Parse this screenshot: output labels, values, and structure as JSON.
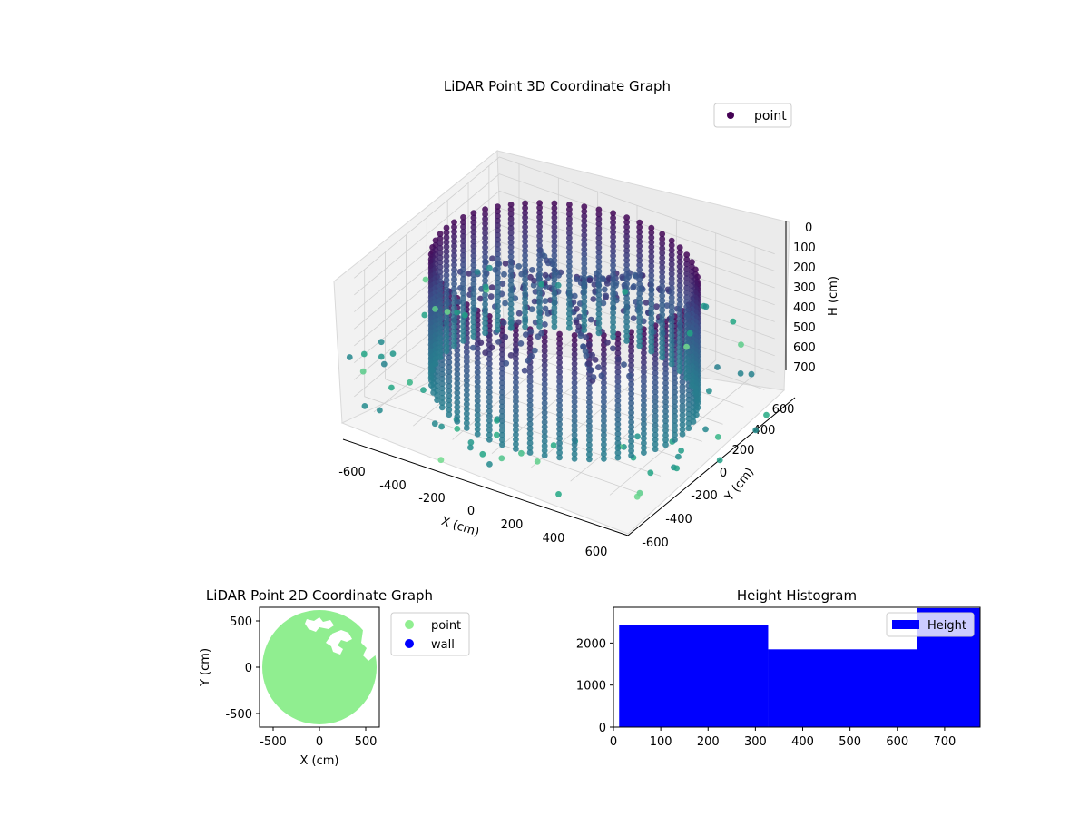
{
  "colors": {
    "viridis_dark": "#440154",
    "viridis_mid": "#2a788e",
    "viridis_teal": "#22a884",
    "point_2d": "#90ee90",
    "wall_2d": "#0000ff",
    "hist_bar": "#0000ff",
    "pane": "#f2f2f2",
    "grid": "#d0d0d0"
  },
  "chart_data": [
    {
      "type": "scatter",
      "projection": "3d",
      "title": "LiDAR Point 3D Coordinate Graph",
      "xlabel": "X (cm)",
      "ylabel": "Y (cm)",
      "zlabel": "H (cm)",
      "xlim": [
        -700,
        700
      ],
      "ylim": [
        -700,
        700
      ],
      "zlim": [
        0,
        750
      ],
      "z_inverted": true,
      "xticks": [
        "-600",
        "-400",
        "-200",
        "0",
        "200",
        "400",
        "600"
      ],
      "yticks": [
        "-600",
        "-400",
        "-200",
        "0",
        "200",
        "400",
        "600"
      ],
      "zticks": [
        "0",
        "100",
        "200",
        "300",
        "400",
        "500",
        "600",
        "700"
      ],
      "legend": [
        "point"
      ],
      "legend_loc": "upper-right",
      "colormap": "viridis",
      "wall": {
        "radius_cm": 600,
        "height_range": [
          20,
          750
        ],
        "columns": 56
      },
      "grid": true
    },
    {
      "type": "scatter",
      "title": "LiDAR Point 2D Coordinate Graph",
      "xlabel": "X (cm)",
      "ylabel": "Y (cm)",
      "xlim": [
        -650,
        650
      ],
      "ylim": [
        -650,
        650
      ],
      "xticks": [
        "-500",
        "0",
        "500"
      ],
      "yticks": [
        "500",
        "0",
        "-500"
      ],
      "series": [
        {
          "name": "point",
          "color": "#90ee90",
          "radius_cm": 620
        },
        {
          "name": "wall",
          "color": "#0000ff"
        }
      ],
      "legend_loc": "outside-right"
    },
    {
      "type": "bar",
      "title": "Height Histogram",
      "xlabel": "",
      "ylabel": "",
      "xlim": [
        0,
        775
      ],
      "ylim": [
        0,
        2850
      ],
      "xticks": [
        "0",
        "100",
        "200",
        "300",
        "400",
        "500",
        "600",
        "700"
      ],
      "yticks": [
        "0",
        "1000",
        "2000"
      ],
      "bins": [
        {
          "from": 12,
          "to": 327,
          "count": 2430
        },
        {
          "from": 327,
          "to": 642,
          "count": 1850
        },
        {
          "from": 642,
          "to": 775,
          "count": 2830
        }
      ],
      "legend": [
        "Height"
      ],
      "legend_loc": "upper-right"
    }
  ]
}
